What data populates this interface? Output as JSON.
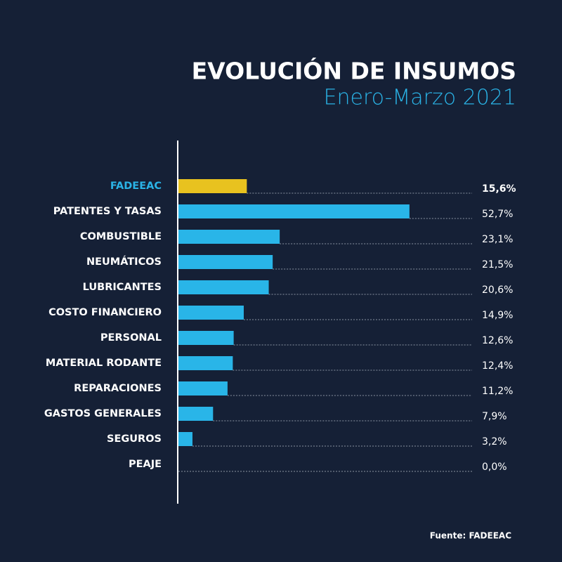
{
  "chart_data": {
    "type": "bar",
    "orientation": "horizontal",
    "title": "EVOLUCIÓN DE INSUMOS",
    "subtitle": "Enero-Marzo 2021",
    "source": "Fuente: FADEEAC",
    "categories": [
      "FADEEAC",
      "PATENTES Y TASAS",
      "COMBUSTIBLE",
      "NEUMÁTICOS",
      "LUBRICANTES",
      "COSTO FINANCIERO",
      "PERSONAL",
      "MATERIAL RODANTE",
      "REPARACIONES",
      "GASTOS GENERALES",
      "SEGUROS",
      "PEAJE"
    ],
    "values": [
      15.6,
      52.7,
      23.1,
      21.5,
      20.6,
      14.9,
      12.6,
      12.4,
      11.2,
      7.9,
      3.2,
      0.0
    ],
    "value_labels": [
      "15,6%",
      "52,7%",
      "23,1%",
      "21,5%",
      "20,6%",
      "14,9%",
      "12,6%",
      "12,4%",
      "11,2%",
      "7,9%",
      "3,2%",
      "0,0%"
    ],
    "colors": [
      "#e8c21f",
      "#29b5e8",
      "#29b5e8",
      "#29b5e8",
      "#29b5e8",
      "#29b5e8",
      "#29b5e8",
      "#29b5e8",
      "#29b5e8",
      "#29b5e8",
      "#29b5e8",
      "#29b5e8"
    ]
  }
}
